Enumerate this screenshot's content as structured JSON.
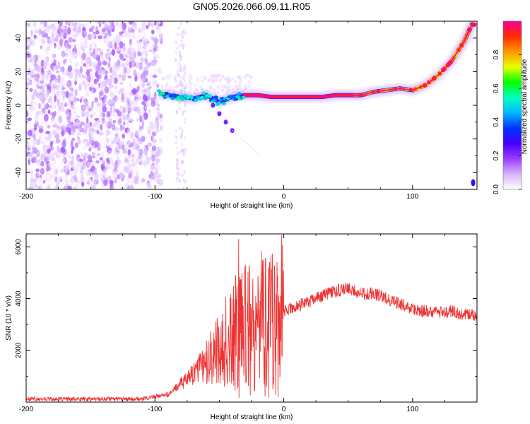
{
  "title": "GN05.2026.066.09.11.R05",
  "chart_data": [
    {
      "type": "heatmap",
      "name": "spectrogram",
      "xlabel": "Height of straight line (km)",
      "ylabel": "Frequency (Hz)",
      "xlim": [
        -200,
        150
      ],
      "ylim": [
        -50,
        50
      ],
      "xticks": [
        -200,
        -100,
        0,
        100
      ],
      "yticks": [
        -40,
        -20,
        0,
        20,
        40
      ],
      "colorbar": {
        "label": "Normalized spectral amplitude",
        "range": [
          0.0,
          1.0
        ],
        "ticks": [
          0.0,
          0.2,
          0.4,
          0.6,
          0.8
        ],
        "colors": [
          "#ffffff",
          "#d7b3ff",
          "#9a3cff",
          "#4400ff",
          "#0033ff",
          "#00b7ff",
          "#00ffc0",
          "#00ff00",
          "#e6ff00",
          "#ff9900",
          "#ff2a00",
          "#ff0099"
        ]
      },
      "ridge": [
        {
          "x": -97,
          "f": 7
        },
        {
          "x": -90,
          "f": 6
        },
        {
          "x": -80,
          "f": 5
        },
        {
          "x": -70,
          "f": 4
        },
        {
          "x": -60,
          "f": 6
        },
        {
          "x": -50,
          "f": 2
        },
        {
          "x": -40,
          "f": 5
        },
        {
          "x": -30,
          "f": 6
        },
        {
          "x": -20,
          "f": 6
        },
        {
          "x": -10,
          "f": 5
        },
        {
          "x": 0,
          "f": 5
        },
        {
          "x": 10,
          "f": 5
        },
        {
          "x": 20,
          "f": 5
        },
        {
          "x": 30,
          "f": 5
        },
        {
          "x": 40,
          "f": 6
        },
        {
          "x": 50,
          "f": 6
        },
        {
          "x": 60,
          "f": 6
        },
        {
          "x": 70,
          "f": 8
        },
        {
          "x": 80,
          "f": 9
        },
        {
          "x": 90,
          "f": 10
        },
        {
          "x": 100,
          "f": 9
        },
        {
          "x": 110,
          "f": 12
        },
        {
          "x": 120,
          "f": 18
        },
        {
          "x": 130,
          "f": 26
        },
        {
          "x": 140,
          "f": 38
        },
        {
          "x": 146,
          "f": 48
        }
      ],
      "branch": [
        {
          "x": -55,
          "f": 0
        },
        {
          "x": -50,
          "f": -5
        },
        {
          "x": -45,
          "f": -10
        },
        {
          "x": -40,
          "f": -15
        }
      ]
    },
    {
      "type": "line",
      "name": "snr",
      "xlabel": "Height of straight line (km)",
      "ylabel": "SNR (10 * v/v)",
      "xlim": [
        -200,
        150
      ],
      "ylim": [
        0,
        6500
      ],
      "xticks": [
        -200,
        -100,
        0,
        100
      ],
      "yticks": [
        2000,
        4000,
        6000
      ],
      "color": "#ee3333",
      "envelope": [
        {
          "x": -200,
          "y": 120
        },
        {
          "x": -110,
          "y": 120
        },
        {
          "x": -90,
          "y": 300
        },
        {
          "x": -80,
          "y": 700
        },
        {
          "x": -70,
          "y": 1100
        },
        {
          "x": -60,
          "y": 1500
        },
        {
          "x": -50,
          "y": 2000
        },
        {
          "x": -40,
          "y": 2500
        },
        {
          "x": -30,
          "y": 2900
        },
        {
          "x": -20,
          "y": 3100
        },
        {
          "x": -10,
          "y": 3200
        },
        {
          "x": 0,
          "y": 3500
        },
        {
          "x": 10,
          "y": 3700
        },
        {
          "x": 20,
          "y": 3900
        },
        {
          "x": 30,
          "y": 4100
        },
        {
          "x": 40,
          "y": 4300
        },
        {
          "x": 50,
          "y": 4400
        },
        {
          "x": 60,
          "y": 4200
        },
        {
          "x": 70,
          "y": 4200
        },
        {
          "x": 80,
          "y": 4000
        },
        {
          "x": 90,
          "y": 3800
        },
        {
          "x": 100,
          "y": 3600
        },
        {
          "x": 110,
          "y": 3500
        },
        {
          "x": 120,
          "y": 3500
        },
        {
          "x": 130,
          "y": 3500
        },
        {
          "x": 140,
          "y": 3400
        },
        {
          "x": 150,
          "y": 3300
        }
      ],
      "peak": {
        "x": -35,
        "y": 6300
      }
    }
  ]
}
